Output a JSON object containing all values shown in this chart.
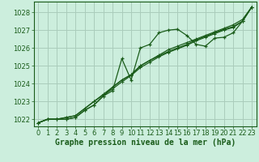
{
  "background_color": "#cceedd",
  "grid_color": "#aaccbb",
  "line_color": "#1a5c1a",
  "marker_color": "#1a5c1a",
  "xlabel": "Graphe pression niveau de la mer (hPa)",
  "xlabel_fontsize": 7,
  "tick_fontsize": 6,
  "xlim": [
    -0.5,
    23.5
  ],
  "ylim": [
    1021.6,
    1028.6
  ],
  "yticks": [
    1022,
    1023,
    1024,
    1025,
    1026,
    1027,
    1028
  ],
  "xticks": [
    0,
    1,
    2,
    3,
    4,
    5,
    6,
    7,
    8,
    9,
    10,
    11,
    12,
    13,
    14,
    15,
    16,
    17,
    18,
    19,
    20,
    21,
    22,
    23
  ],
  "series": [
    [
      1021.8,
      1022.0,
      1022.0,
      1022.0,
      1022.1,
      1022.5,
      1022.8,
      1023.3,
      1023.6,
      1025.4,
      1024.2,
      1026.0,
      1026.2,
      1026.85,
      1027.0,
      1027.05,
      1026.7,
      1026.2,
      1026.1,
      1026.55,
      1026.6,
      1026.85,
      1027.5,
      1028.3
    ],
    [
      1021.8,
      1022.0,
      1022.0,
      1022.0,
      1022.1,
      1022.5,
      1022.8,
      1023.3,
      1023.8,
      1024.2,
      1024.5,
      1025.0,
      1025.3,
      1025.6,
      1025.9,
      1026.1,
      1026.3,
      1026.5,
      1026.7,
      1026.9,
      1027.1,
      1027.3,
      1027.6,
      1028.3
    ],
    [
      1021.8,
      1022.0,
      1022.0,
      1022.1,
      1022.2,
      1022.6,
      1023.0,
      1023.4,
      1023.8,
      1024.2,
      1024.5,
      1025.0,
      1025.3,
      1025.55,
      1025.8,
      1026.0,
      1026.2,
      1026.45,
      1026.65,
      1026.85,
      1027.05,
      1027.2,
      1027.5,
      1028.3
    ],
    [
      1021.8,
      1022.0,
      1022.0,
      1022.1,
      1022.2,
      1022.6,
      1023.0,
      1023.35,
      1023.7,
      1024.1,
      1024.45,
      1024.9,
      1025.2,
      1025.5,
      1025.75,
      1025.95,
      1026.15,
      1026.4,
      1026.6,
      1026.8,
      1027.0,
      1027.15,
      1027.5,
      1028.3
    ]
  ]
}
